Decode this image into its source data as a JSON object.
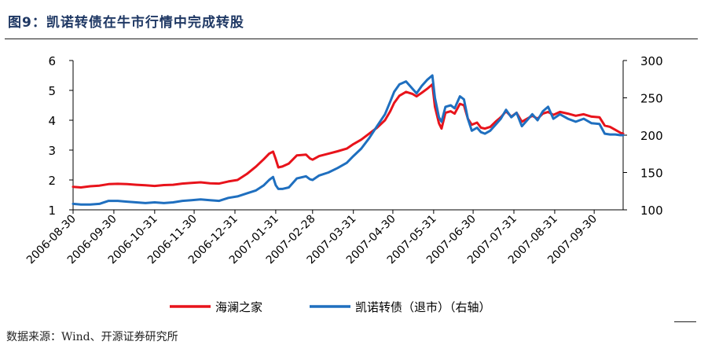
{
  "figure": {
    "title": "图9：凯诺转债在牛市行情中完成转股",
    "source": "数据来源：Wind、开源证券研究所"
  },
  "chart_data": {
    "type": "line",
    "x_tick_labels": [
      "2006-08-30",
      "2006-09-30",
      "2006-10-31",
      "2006-11-30",
      "2006-12-31",
      "2007-01-31",
      "2007-02-28",
      "2007-03-31",
      "2007-04-30",
      "2007-05-31",
      "2007-06-30",
      "2007-07-31",
      "2007-08-31",
      "2007-09-30"
    ],
    "x_range": [
      "2006-08-30",
      "2007-10-22"
    ],
    "y_left": {
      "ticks": [
        1,
        2,
        3,
        4,
        5,
        6
      ],
      "range": [
        1,
        6
      ]
    },
    "y_right": {
      "ticks": [
        100,
        150,
        200,
        250,
        300
      ],
      "range": [
        100,
        300
      ]
    },
    "legend": {
      "placement": "bottom"
    },
    "series": [
      {
        "name": "海澜之家",
        "axis": "left",
        "color": "#e8131b",
        "points": [
          [
            "2006-08-30",
            1.77
          ],
          [
            "2006-09-05",
            1.75
          ],
          [
            "2006-09-12",
            1.79
          ],
          [
            "2006-09-19",
            1.81
          ],
          [
            "2006-09-26",
            1.86
          ],
          [
            "2006-10-03",
            1.87
          ],
          [
            "2006-10-10",
            1.86
          ],
          [
            "2006-10-17",
            1.84
          ],
          [
            "2006-10-24",
            1.82
          ],
          [
            "2006-10-31",
            1.8
          ],
          [
            "2006-11-07",
            1.83
          ],
          [
            "2006-11-14",
            1.84
          ],
          [
            "2006-11-21",
            1.88
          ],
          [
            "2006-11-28",
            1.9
          ],
          [
            "2006-12-05",
            1.92
          ],
          [
            "2006-12-12",
            1.89
          ],
          [
            "2006-12-19",
            1.88
          ],
          [
            "2006-12-26",
            1.95
          ],
          [
            "2007-01-02",
            2.0
          ],
          [
            "2007-01-09",
            2.2
          ],
          [
            "2007-01-16",
            2.45
          ],
          [
            "2007-01-22",
            2.7
          ],
          [
            "2007-01-26",
            2.88
          ],
          [
            "2007-01-29",
            2.95
          ],
          [
            "2007-01-31",
            2.7
          ],
          [
            "2007-02-02",
            2.42
          ],
          [
            "2007-02-05",
            2.45
          ],
          [
            "2007-02-10",
            2.55
          ],
          [
            "2007-02-16",
            2.82
          ],
          [
            "2007-02-23",
            2.85
          ],
          [
            "2007-02-26",
            2.72
          ],
          [
            "2007-02-28",
            2.68
          ],
          [
            "2007-03-05",
            2.8
          ],
          [
            "2007-03-12",
            2.88
          ],
          [
            "2007-03-19",
            2.96
          ],
          [
            "2007-03-26",
            3.05
          ],
          [
            "2007-03-31",
            3.2
          ],
          [
            "2007-04-06",
            3.35
          ],
          [
            "2007-04-12",
            3.55
          ],
          [
            "2007-04-18",
            3.75
          ],
          [
            "2007-04-24",
            4.0
          ],
          [
            "2007-04-28",
            4.3
          ],
          [
            "2007-05-01",
            4.58
          ],
          [
            "2007-05-05",
            4.82
          ],
          [
            "2007-05-10",
            4.95
          ],
          [
            "2007-05-15",
            4.88
          ],
          [
            "2007-05-18",
            4.8
          ],
          [
            "2007-05-22",
            4.92
          ],
          [
            "2007-05-26",
            5.05
          ],
          [
            "2007-05-30",
            5.2
          ],
          [
            "2007-06-01",
            4.45
          ],
          [
            "2007-06-04",
            3.9
          ],
          [
            "2007-06-06",
            3.72
          ],
          [
            "2007-06-09",
            4.25
          ],
          [
            "2007-06-13",
            4.3
          ],
          [
            "2007-06-16",
            4.22
          ],
          [
            "2007-06-20",
            4.55
          ],
          [
            "2007-06-23",
            4.5
          ],
          [
            "2007-06-26",
            4.05
          ],
          [
            "2007-06-29",
            3.85
          ],
          [
            "2007-07-03",
            3.92
          ],
          [
            "2007-07-06",
            3.75
          ],
          [
            "2007-07-09",
            3.72
          ],
          [
            "2007-07-13",
            3.78
          ],
          [
            "2007-07-17",
            3.95
          ],
          [
            "2007-07-21",
            4.1
          ],
          [
            "2007-07-25",
            4.3
          ],
          [
            "2007-07-29",
            4.12
          ],
          [
            "2007-08-02",
            4.25
          ],
          [
            "2007-08-06",
            3.95
          ],
          [
            "2007-08-10",
            4.05
          ],
          [
            "2007-08-14",
            4.15
          ],
          [
            "2007-08-18",
            4.05
          ],
          [
            "2007-08-22",
            4.22
          ],
          [
            "2007-08-26",
            4.28
          ],
          [
            "2007-08-30",
            4.18
          ],
          [
            "2007-09-04",
            4.28
          ],
          [
            "2007-09-10",
            4.22
          ],
          [
            "2007-09-16",
            4.15
          ],
          [
            "2007-09-22",
            4.2
          ],
          [
            "2007-09-28",
            4.12
          ],
          [
            "2007-10-04",
            4.1
          ],
          [
            "2007-10-08",
            3.82
          ],
          [
            "2007-10-12",
            3.78
          ],
          [
            "2007-10-16",
            3.68
          ],
          [
            "2007-10-20",
            3.58
          ],
          [
            "2007-10-22",
            3.55
          ]
        ]
      },
      {
        "name": "凯诺转债（退市）（右轴）",
        "axis": "right",
        "color": "#1f6fbf",
        "points": [
          [
            "2006-08-30",
            108
          ],
          [
            "2006-09-05",
            107
          ],
          [
            "2006-09-12",
            107
          ],
          [
            "2006-09-19",
            108
          ],
          [
            "2006-09-26",
            112
          ],
          [
            "2006-10-03",
            112
          ],
          [
            "2006-10-10",
            111
          ],
          [
            "2006-10-17",
            110
          ],
          [
            "2006-10-24",
            109
          ],
          [
            "2006-10-31",
            110
          ],
          [
            "2006-11-07",
            109
          ],
          [
            "2006-11-14",
            110
          ],
          [
            "2006-11-21",
            112
          ],
          [
            "2006-11-28",
            113
          ],
          [
            "2006-12-05",
            114
          ],
          [
            "2006-12-12",
            113
          ],
          [
            "2006-12-19",
            112
          ],
          [
            "2006-12-26",
            116
          ],
          [
            "2007-01-02",
            118
          ],
          [
            "2007-01-09",
            122
          ],
          [
            "2007-01-16",
            126
          ],
          [
            "2007-01-22",
            133
          ],
          [
            "2007-01-26",
            140
          ],
          [
            "2007-01-29",
            144
          ],
          [
            "2007-01-31",
            133
          ],
          [
            "2007-02-02",
            128
          ],
          [
            "2007-02-05",
            128
          ],
          [
            "2007-02-10",
            130
          ],
          [
            "2007-02-16",
            142
          ],
          [
            "2007-02-23",
            145
          ],
          [
            "2007-02-26",
            141
          ],
          [
            "2007-02-28",
            140
          ],
          [
            "2007-03-05",
            146
          ],
          [
            "2007-03-12",
            150
          ],
          [
            "2007-03-19",
            156
          ],
          [
            "2007-03-26",
            163
          ],
          [
            "2007-03-31",
            172
          ],
          [
            "2007-04-06",
            182
          ],
          [
            "2007-04-12",
            196
          ],
          [
            "2007-04-18",
            212
          ],
          [
            "2007-04-24",
            228
          ],
          [
            "2007-04-28",
            245
          ],
          [
            "2007-05-01",
            258
          ],
          [
            "2007-05-05",
            268
          ],
          [
            "2007-05-10",
            272
          ],
          [
            "2007-05-15",
            262
          ],
          [
            "2007-05-18",
            256
          ],
          [
            "2007-05-22",
            266
          ],
          [
            "2007-05-26",
            274
          ],
          [
            "2007-05-30",
            280
          ],
          [
            "2007-06-01",
            250
          ],
          [
            "2007-06-04",
            224
          ],
          [
            "2007-06-06",
            218
          ],
          [
            "2007-06-09",
            238
          ],
          [
            "2007-06-13",
            240
          ],
          [
            "2007-06-16",
            236
          ],
          [
            "2007-06-20",
            252
          ],
          [
            "2007-06-23",
            248
          ],
          [
            "2007-06-26",
            222
          ],
          [
            "2007-06-29",
            206
          ],
          [
            "2007-07-03",
            210
          ],
          [
            "2007-07-06",
            204
          ],
          [
            "2007-07-09",
            202
          ],
          [
            "2007-07-13",
            206
          ],
          [
            "2007-07-17",
            214
          ],
          [
            "2007-07-21",
            222
          ],
          [
            "2007-07-25",
            234
          ],
          [
            "2007-07-29",
            224
          ],
          [
            "2007-08-02",
            230
          ],
          [
            "2007-08-06",
            212
          ],
          [
            "2007-08-10",
            220
          ],
          [
            "2007-08-14",
            228
          ],
          [
            "2007-08-18",
            220
          ],
          [
            "2007-08-22",
            232
          ],
          [
            "2007-08-26",
            238
          ],
          [
            "2007-08-30",
            222
          ],
          [
            "2007-09-04",
            228
          ],
          [
            "2007-09-10",
            222
          ],
          [
            "2007-09-16",
            218
          ],
          [
            "2007-09-22",
            222
          ],
          [
            "2007-09-28",
            216
          ],
          [
            "2007-10-04",
            215
          ],
          [
            "2007-10-08",
            202
          ],
          [
            "2007-10-12",
            201
          ],
          [
            "2007-10-16",
            201
          ],
          [
            "2007-10-20",
            200
          ],
          [
            "2007-10-22",
            200
          ]
        ]
      }
    ]
  }
}
